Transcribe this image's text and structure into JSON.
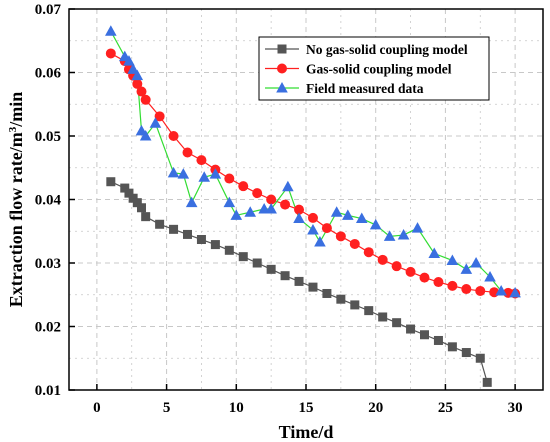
{
  "chart_data": {
    "type": "line",
    "xlabel": "Time/d",
    "ylabel_parts": [
      "Extraction flow rate/m",
      "3",
      "/min"
    ],
    "xlim": [
      -2,
      32
    ],
    "ylim": [
      0.01,
      0.07
    ],
    "x_ticks": [
      0,
      5,
      10,
      15,
      20,
      25,
      30
    ],
    "y_ticks": [
      0.01,
      0.02,
      0.03,
      0.04,
      0.05,
      0.06,
      0.07
    ],
    "x_tick_labels": [
      "0",
      "5",
      "10",
      "15",
      "20",
      "25",
      "30"
    ],
    "y_tick_labels": [
      "0.01",
      "0.02",
      "0.03",
      "0.04",
      "0.05",
      "0.06",
      "0.07"
    ],
    "grid": true,
    "legend_position": "top-right",
    "series": [
      {
        "name": "No gas-solid coupling model",
        "marker": "square",
        "color": "#555555",
        "line_color": "#555555",
        "points": [
          [
            1,
            0.0428
          ],
          [
            2,
            0.0418
          ],
          [
            2.3,
            0.041
          ],
          [
            2.6,
            0.0402
          ],
          [
            2.9,
            0.0395
          ],
          [
            3.2,
            0.0387
          ],
          [
            3.5,
            0.0373
          ],
          [
            4.5,
            0.0361
          ],
          [
            5.5,
            0.0353
          ],
          [
            6.5,
            0.0345
          ],
          [
            7.5,
            0.0337
          ],
          [
            8.5,
            0.0329
          ],
          [
            9.5,
            0.032
          ],
          [
            10.5,
            0.031
          ],
          [
            11.5,
            0.03
          ],
          [
            12.5,
            0.029
          ],
          [
            13.5,
            0.028
          ],
          [
            14.5,
            0.0271
          ],
          [
            15.5,
            0.0262
          ],
          [
            16.5,
            0.0252
          ],
          [
            17.5,
            0.0243
          ],
          [
            18.5,
            0.0234
          ],
          [
            19.5,
            0.0225
          ],
          [
            20.5,
            0.0215
          ],
          [
            21.5,
            0.0206
          ],
          [
            22.5,
            0.0196
          ],
          [
            23.5,
            0.0187
          ],
          [
            24.5,
            0.0178
          ],
          [
            25.5,
            0.0168
          ],
          [
            26.5,
            0.0159
          ],
          [
            27.5,
            0.015
          ],
          [
            28,
            0.0112
          ]
        ]
      },
      {
        "name": "Gas-solid coupling model",
        "marker": "circle",
        "color": "#ff2020",
        "line_color": "#ff2020",
        "points": [
          [
            1,
            0.063
          ],
          [
            2,
            0.0618
          ],
          [
            2.3,
            0.0605
          ],
          [
            2.6,
            0.0595
          ],
          [
            2.9,
            0.0582
          ],
          [
            3.2,
            0.057
          ],
          [
            3.5,
            0.0557
          ],
          [
            4.5,
            0.0531
          ],
          [
            5.5,
            0.05
          ],
          [
            6.5,
            0.0474
          ],
          [
            7.5,
            0.0462
          ],
          [
            8.5,
            0.0447
          ],
          [
            9.5,
            0.0433
          ],
          [
            10.5,
            0.0421
          ],
          [
            11.5,
            0.041
          ],
          [
            12.5,
            0.04
          ],
          [
            13.5,
            0.0392
          ],
          [
            14.5,
            0.0384
          ],
          [
            15.5,
            0.0371
          ],
          [
            16.5,
            0.0355
          ],
          [
            17.5,
            0.0342
          ],
          [
            18.5,
            0.033
          ],
          [
            19.5,
            0.0317
          ],
          [
            20.5,
            0.0305
          ],
          [
            21.5,
            0.0295
          ],
          [
            22.5,
            0.0286
          ],
          [
            23.5,
            0.0277
          ],
          [
            24.5,
            0.027
          ],
          [
            25.5,
            0.0264
          ],
          [
            26.5,
            0.0259
          ],
          [
            27.5,
            0.0256
          ],
          [
            28.5,
            0.0254
          ],
          [
            29.5,
            0.0253
          ],
          [
            30,
            0.0252
          ]
        ]
      },
      {
        "name": "Field measured data",
        "marker": "triangle",
        "color": "#3a6fe0",
        "line_color": "#33dd33",
        "points": [
          [
            1,
            0.0665
          ],
          [
            2,
            0.0625
          ],
          [
            2.3,
            0.0618
          ],
          [
            2.6,
            0.0605
          ],
          [
            2.9,
            0.0595
          ],
          [
            3.2,
            0.0508
          ],
          [
            3.5,
            0.05
          ],
          [
            4.2,
            0.052
          ],
          [
            5.5,
            0.0442
          ],
          [
            6.2,
            0.044
          ],
          [
            6.8,
            0.0395
          ],
          [
            7.7,
            0.0435
          ],
          [
            8.5,
            0.044
          ],
          [
            9.5,
            0.0395
          ],
          [
            10,
            0.0375
          ],
          [
            11,
            0.038
          ],
          [
            12,
            0.0385
          ],
          [
            12.5,
            0.0385
          ],
          [
            13.7,
            0.042
          ],
          [
            14.5,
            0.037
          ],
          [
            15.5,
            0.0352
          ],
          [
            16,
            0.0333
          ],
          [
            17.2,
            0.038
          ],
          [
            18,
            0.0375
          ],
          [
            19,
            0.037
          ],
          [
            20,
            0.036
          ],
          [
            21,
            0.0342
          ],
          [
            22,
            0.0344
          ],
          [
            23,
            0.0355
          ],
          [
            24.2,
            0.0315
          ],
          [
            25.5,
            0.0304
          ],
          [
            26.5,
            0.029
          ],
          [
            27.2,
            0.03
          ],
          [
            28.2,
            0.0278
          ],
          [
            29,
            0.0256
          ],
          [
            30,
            0.0253
          ]
        ]
      }
    ]
  },
  "colors": {
    "plot_background": "#ffffff",
    "grid": "#c8c8c8",
    "axis": "#000000"
  }
}
